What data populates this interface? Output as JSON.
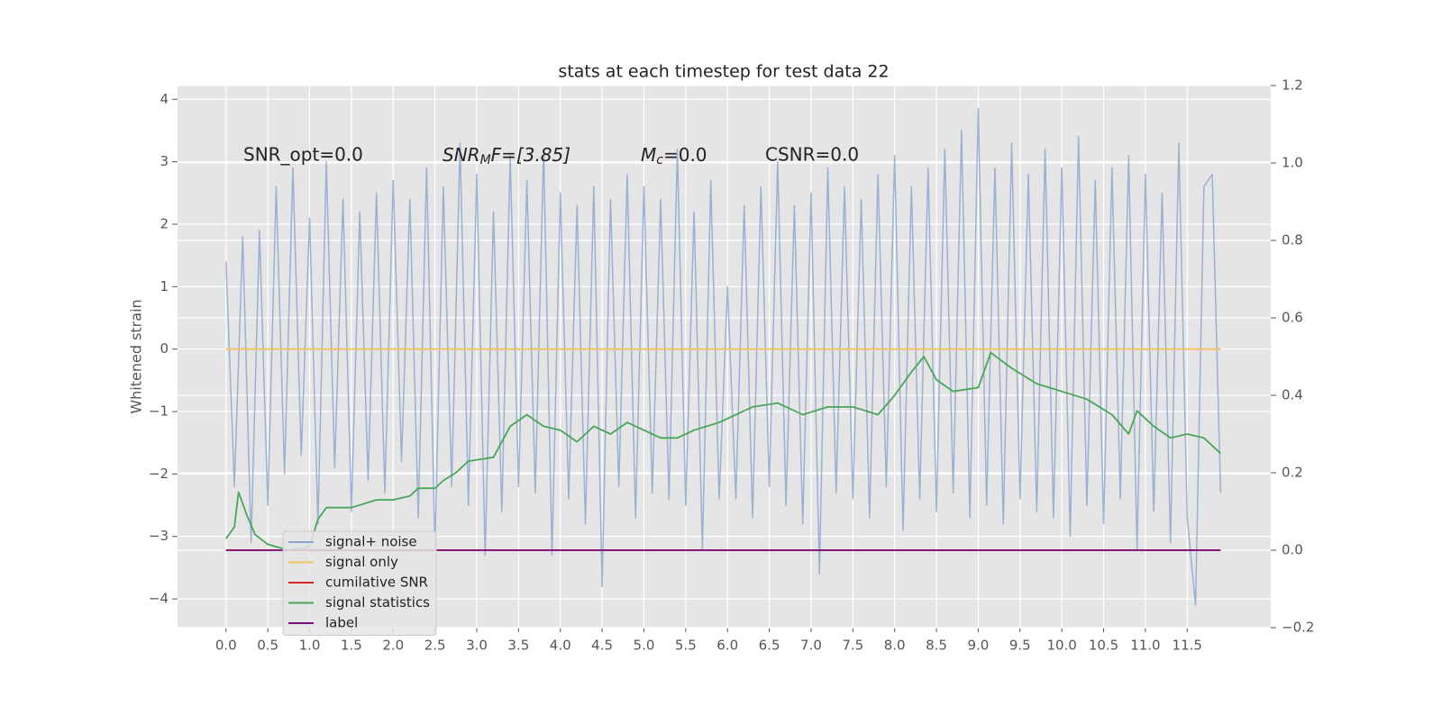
{
  "chart_data": {
    "type": "line",
    "title": "stats at each timestep for test data 22",
    "ylabel": "Whitened strain",
    "annotations": [
      [
        "SNR_opt=0.0"
      ],
      [
        "SNR",
        "M",
        "F=[3.85]"
      ],
      [
        "M",
        "c",
        "=0.0"
      ],
      [
        "CSNR=0.0"
      ]
    ],
    "xlim": [
      -0.58,
      12.5
    ],
    "ylim": [
      -4.46,
      4.22
    ],
    "y2lim": [
      -0.2,
      1.2
    ],
    "xticks": [
      {
        "value": 0,
        "label": "0.0"
      },
      0.5,
      {
        "value": 1,
        "label": "1.0"
      },
      1.5,
      {
        "value": 2,
        "label": "2.0"
      },
      2.5,
      {
        "value": 3,
        "label": "3.0"
      },
      3.5,
      {
        "value": 4,
        "label": "4.0"
      },
      4.5,
      {
        "value": 5,
        "label": "5.0"
      },
      5.5,
      {
        "value": 6,
        "label": "6.0"
      },
      6.5,
      {
        "value": 7,
        "label": "7.0"
      },
      7.5,
      {
        "value": 8,
        "label": "8.0"
      },
      8.5,
      {
        "value": 9,
        "label": "9.0"
      },
      9.5,
      {
        "value": 10,
        "label": "10.0"
      },
      10.5,
      {
        "value": 11,
        "label": "11.0"
      },
      11.5
    ],
    "yticks": [
      {
        "value": -4,
        "label": "−4"
      },
      {
        "value": -3,
        "label": "−3"
      },
      {
        "value": -2,
        "label": "−2"
      },
      {
        "value": -1,
        "label": "−1"
      },
      0,
      1,
      2,
      3,
      4
    ],
    "y2ticks": [
      {
        "value": -0.2,
        "label": "−0.2"
      },
      {
        "value": 0,
        "label": "0.0"
      },
      0.2,
      0.4,
      0.6,
      0.8,
      {
        "value": 1,
        "label": "1.0"
      },
      1.2
    ],
    "grid": true,
    "legend_loc": "lower left",
    "series": [
      {
        "name": "signal+ noise",
        "color": "#8aa2cc",
        "axis": "y",
        "x": [
          0.0,
          0.1,
          0.2,
          0.3,
          0.4,
          0.5,
          0.6,
          0.7,
          0.8,
          0.9,
          1.0,
          1.1,
          1.2,
          1.3,
          1.4,
          1.5,
          1.6,
          1.7,
          1.8,
          1.9,
          2.0,
          2.1,
          2.2,
          2.3,
          2.4,
          2.5,
          2.6,
          2.7,
          2.8,
          2.9,
          3.0,
          3.1,
          3.2,
          3.3,
          3.4,
          3.5,
          3.6,
          3.7,
          3.8,
          3.9,
          4.0,
          4.1,
          4.2,
          4.3,
          4.4,
          4.5,
          4.6,
          4.7,
          4.8,
          4.9,
          5.0,
          5.1,
          5.2,
          5.3,
          5.4,
          5.5,
          5.6,
          5.7,
          5.8,
          5.9,
          6.0,
          6.1,
          6.2,
          6.3,
          6.4,
          6.5,
          6.6,
          6.7,
          6.8,
          6.9,
          7.0,
          7.1,
          7.2,
          7.3,
          7.4,
          7.5,
          7.6,
          7.7,
          7.8,
          7.9,
          8.0,
          8.1,
          8.2,
          8.3,
          8.4,
          8.5,
          8.6,
          8.7,
          8.8,
          8.9,
          9.0,
          9.1,
          9.2,
          9.3,
          9.4,
          9.5,
          9.6,
          9.7,
          9.8,
          9.9,
          10.0,
          10.1,
          10.2,
          10.3,
          10.4,
          10.5,
          10.6,
          10.7,
          10.8,
          10.9,
          11.0,
          11.1,
          11.2,
          11.3,
          11.4,
          11.5,
          11.6,
          11.7,
          11.8,
          11.9
        ],
        "values": [
          1.4,
          -2.2,
          1.8,
          -3.1,
          1.9,
          -2.5,
          2.6,
          -2.0,
          2.9,
          -1.7,
          2.1,
          -2.8,
          3.0,
          -1.9,
          2.4,
          -2.6,
          2.2,
          -2.1,
          2.5,
          -2.3,
          2.7,
          -1.8,
          2.4,
          -2.7,
          2.9,
          -3.2,
          2.6,
          -2.2,
          3.3,
          -2.5,
          2.8,
          -3.3,
          2.2,
          -2.6,
          3.1,
          -2.2,
          2.7,
          -2.3,
          3.2,
          -3.3,
          2.5,
          -2.4,
          2.3,
          -2.8,
          2.6,
          -3.8,
          2.4,
          -2.2,
          2.8,
          -2.7,
          2.6,
          -2.3,
          2.4,
          -2.4,
          3.2,
          -2.5,
          2.2,
          -3.2,
          2.7,
          -2.4,
          1.0,
          -2.4,
          2.3,
          -2.7,
          2.6,
          -2.2,
          3.0,
          -2.5,
          2.3,
          -2.8,
          2.5,
          -3.6,
          2.9,
          -2.3,
          2.6,
          -2.4,
          2.4,
          -2.7,
          2.8,
          -2.2,
          3.1,
          -2.9,
          2.6,
          -2.4,
          2.9,
          -2.6,
          3.2,
          -2.3,
          3.5,
          -2.7,
          3.85,
          -2.5,
          2.9,
          -2.8,
          3.3,
          -2.4,
          2.8,
          -2.6,
          3.2,
          -2.7,
          2.9,
          -3.0,
          3.4,
          -2.5,
          2.7,
          -2.8,
          2.9,
          -2.4,
          3.1,
          -3.2,
          2.8,
          -2.6,
          2.5,
          -3.1,
          3.3,
          -2.7,
          -4.1,
          2.6,
          2.8,
          -2.3
        ]
      },
      {
        "name": "signal only",
        "color": "#f2c45f",
        "axis": "y",
        "x": [
          0.0,
          11.9
        ],
        "values": [
          0,
          0
        ]
      },
      {
        "name": "cumilative SNR",
        "color": "#d62728",
        "axis": "y2",
        "x": [
          0.0,
          11.9
        ],
        "values": [
          0,
          0
        ]
      },
      {
        "name": "signal statistics",
        "color": "#4aa55a",
        "axis": "y2",
        "x": [
          0.0,
          0.1,
          0.15,
          0.25,
          0.35,
          0.5,
          0.75,
          1.0,
          1.1,
          1.2,
          1.5,
          1.8,
          2.0,
          2.2,
          2.3,
          2.5,
          2.6,
          2.75,
          2.9,
          3.2,
          3.4,
          3.6,
          3.8,
          4.0,
          4.2,
          4.4,
          4.6,
          4.8,
          5.0,
          5.2,
          5.4,
          5.6,
          5.9,
          6.0,
          6.3,
          6.6,
          6.9,
          7.2,
          7.5,
          7.8,
          8.0,
          8.2,
          8.35,
          8.5,
          8.7,
          9.0,
          9.15,
          9.4,
          9.7,
          10.0,
          10.3,
          10.6,
          10.8,
          10.9,
          11.1,
          11.3,
          11.5,
          11.7,
          11.9
        ],
        "values": [
          0.03,
          0.06,
          0.15,
          0.09,
          0.04,
          0.015,
          0.0,
          0.01,
          0.08,
          0.11,
          0.11,
          0.13,
          0.13,
          0.14,
          0.16,
          0.16,
          0.18,
          0.2,
          0.23,
          0.24,
          0.32,
          0.35,
          0.32,
          0.31,
          0.28,
          0.32,
          0.3,
          0.33,
          0.31,
          0.29,
          0.29,
          0.31,
          0.33,
          0.34,
          0.37,
          0.38,
          0.35,
          0.37,
          0.37,
          0.35,
          0.4,
          0.46,
          0.5,
          0.44,
          0.41,
          0.42,
          0.51,
          0.47,
          0.43,
          0.41,
          0.39,
          0.35,
          0.3,
          0.36,
          0.32,
          0.29,
          0.3,
          0.29,
          0.25
        ]
      },
      {
        "name": "label",
        "color": "#7b0f7b",
        "axis": "y2",
        "x": [
          0.0,
          11.9
        ],
        "values": [
          0,
          0
        ]
      }
    ]
  }
}
